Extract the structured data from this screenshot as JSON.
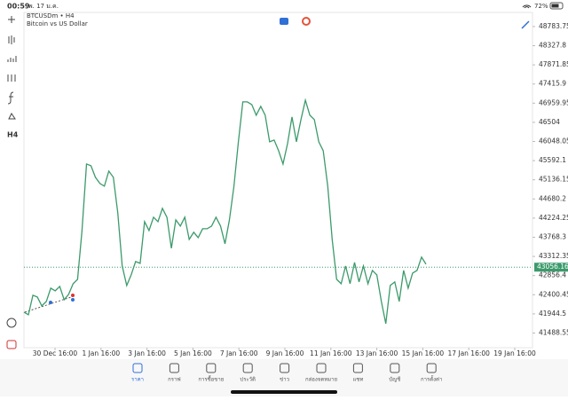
{
  "status_bar": {
    "time": "00:59",
    "date": "พ. 17 ม.ค.",
    "battery": "72%"
  },
  "chart_data": {
    "type": "line",
    "title": "BTCUSDm • H4",
    "subtitle": "Bitcoin vs US Dollar",
    "series": [
      {
        "name": "BTCUSDm",
        "color": "#3c9a6b",
        "values": [
          41987,
          41923,
          42388,
          42345,
          42134,
          42240,
          42557,
          42493,
          42599,
          42282,
          42409,
          42662,
          42768,
          43929,
          45512,
          45470,
          45195,
          45048,
          44984,
          45343,
          45195,
          44351,
          43084,
          42620,
          42873,
          43190,
          43148,
          44140,
          43929,
          44245,
          44140,
          44456,
          44245,
          43506,
          44182,
          44034,
          44245,
          43718,
          43886,
          43760,
          43971,
          43971,
          44034,
          44245,
          44034,
          43612,
          44182,
          44984,
          46040,
          46990,
          46990,
          46926,
          46673,
          46884,
          46673,
          46040,
          46082,
          45829,
          45512,
          45997,
          46631,
          46040,
          46567,
          47032,
          46673,
          46567,
          46040,
          45829,
          44984,
          43718,
          42768,
          42662,
          43084,
          42662,
          43169,
          42704,
          43084,
          42662,
          42979,
          42873,
          42240,
          41712,
          42620,
          42704,
          42240,
          42979,
          42557,
          42915,
          42979,
          43295,
          43127
        ]
      }
    ],
    "current_price": 43056.16,
    "ylim": [
      41140,
      49120
    ],
    "yticks": [
      48783.75,
      48327.8,
      47871.85,
      47415.9,
      46959.95,
      46504.0,
      46048.05,
      45592.1,
      45136.15,
      44680.2,
      44224.25,
      43768.3,
      43312.35,
      42856.4,
      42400.45,
      41944.5,
      41488.55
    ],
    "xticks": [
      "30 Dec 16:00",
      "1 Jan 16:00",
      "3 Jan 16:00",
      "5 Jan 16:00",
      "7 Jan 16:00",
      "9 Jan 16:00",
      "11 Jan 16:00",
      "13 Jan 16:00",
      "15 Jan 16:00",
      "17 Jan 16:00",
      "19 Jan 16:00"
    ]
  },
  "toolbar": {
    "timeframe": "H4"
  },
  "tabs": [
    "ราคา",
    "กราฟ",
    "การซื้อขาย",
    "ประวัติ",
    "ข่าว",
    "กล่องจดหมาย",
    "แชท",
    "บัญชี",
    "การตั้งค่า"
  ]
}
